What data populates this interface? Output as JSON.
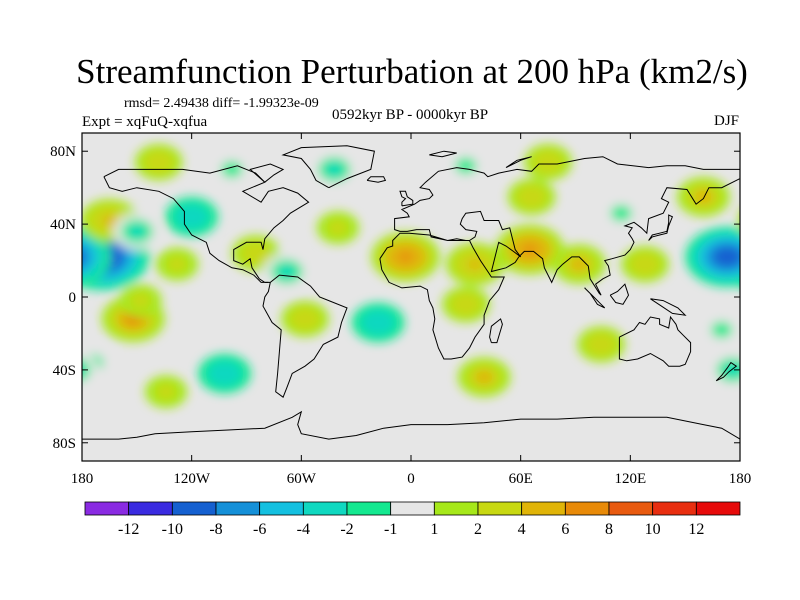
{
  "chart_data": {
    "type": "heatmap",
    "title": "Streamfunction Perturbation at 200 hPa (km2/s)",
    "stats_text": "rmsd= 2.49438  diff= -1.99323e-09",
    "experiment_text": "Expt = xqFuQ-xqfua",
    "period_text": "0592kyr BP - 0000kyr BP",
    "season_text": "DJF",
    "map": {
      "projection": "cylindrical-equidistant",
      "lon_range": [
        -180,
        180
      ],
      "lat_range": [
        -90,
        90
      ],
      "x_ticks": [
        {
          "value": -180,
          "label": "180"
        },
        {
          "value": -120,
          "label": "120W"
        },
        {
          "value": -60,
          "label": "60W"
        },
        {
          "value": 0,
          "label": "0"
        },
        {
          "value": 60,
          "label": "60E"
        },
        {
          "value": 120,
          "label": "120E"
        },
        {
          "value": 180,
          "label": "180"
        }
      ],
      "y_ticks": [
        {
          "value": 80,
          "label": "80N"
        },
        {
          "value": 40,
          "label": "40N"
        },
        {
          "value": 0,
          "label": "0"
        },
        {
          "value": -40,
          "label": "40S"
        },
        {
          "value": -80,
          "label": "80S"
        }
      ],
      "background_color": "#e6e6e6",
      "coastline_color": "#000000"
    },
    "colorbar": {
      "colors": [
        "#8a2be2",
        "#3a2be0",
        "#1560d0",
        "#1590d8",
        "#14c0e0",
        "#10d8c0",
        "#14e890",
        "#e6e6e6",
        "#a6e81a",
        "#c8d812",
        "#e0b408",
        "#e88a08",
        "#e85a10",
        "#e82e10",
        "#e60a0a"
      ],
      "labels": [
        "-12",
        "-10",
        "-8",
        "-6",
        "-4",
        "-2",
        "-1",
        "1",
        "2",
        "4",
        "6",
        "8",
        "10",
        "12"
      ]
    },
    "anomalies": [
      {
        "lon": -169,
        "lat": 22,
        "value": -12
      },
      {
        "lon": 173,
        "lat": 22,
        "value": -10
      },
      {
        "lon": -165,
        "lat": 42,
        "value": 5
      },
      {
        "lon": -150,
        "lat": 36,
        "value": -3
      },
      {
        "lon": -138,
        "lat": 74,
        "value": 3
      },
      {
        "lon": -120,
        "lat": 44,
        "value": -4
      },
      {
        "lon": -98,
        "lat": 70,
        "value": -2
      },
      {
        "lon": -85,
        "lat": 24,
        "value": 3
      },
      {
        "lon": -128,
        "lat": 18,
        "value": 2
      },
      {
        "lon": -68,
        "lat": 14,
        "value": -3
      },
      {
        "lon": -42,
        "lat": 70,
        "value": -3
      },
      {
        "lon": 30,
        "lat": 72,
        "value": -2
      },
      {
        "lon": 75,
        "lat": 74,
        "value": 3
      },
      {
        "lon": 66,
        "lat": 55,
        "value": 3
      },
      {
        "lon": -40,
        "lat": 38,
        "value": 2
      },
      {
        "lon": -3,
        "lat": 22,
        "value": 7
      },
      {
        "lon": 35,
        "lat": 18,
        "value": 5
      },
      {
        "lon": 65,
        "lat": 26,
        "value": 7
      },
      {
        "lon": 92,
        "lat": 18,
        "value": 4
      },
      {
        "lon": 115,
        "lat": 46,
        "value": -2
      },
      {
        "lon": 128,
        "lat": 18,
        "value": 3
      },
      {
        "lon": 160,
        "lat": 55,
        "value": 4
      },
      {
        "lon": -152,
        "lat": -12,
        "value": 6
      },
      {
        "lon": -174,
        "lat": -36,
        "value": -2
      },
      {
        "lon": -134,
        "lat": -52,
        "value": 2
      },
      {
        "lon": -102,
        "lat": -42,
        "value": -4
      },
      {
        "lon": -58,
        "lat": -12,
        "value": 3
      },
      {
        "lon": -18,
        "lat": -14,
        "value": -4
      },
      {
        "lon": 30,
        "lat": -4,
        "value": 3
      },
      {
        "lon": 40,
        "lat": -44,
        "value": 4
      },
      {
        "lon": 104,
        "lat": -26,
        "value": 3
      },
      {
        "lon": 170,
        "lat": -18,
        "value": -2
      },
      {
        "lon": 176,
        "lat": -40,
        "value": -3
      },
      {
        "lon": -148,
        "lat": -2,
        "value": 2
      }
    ]
  }
}
